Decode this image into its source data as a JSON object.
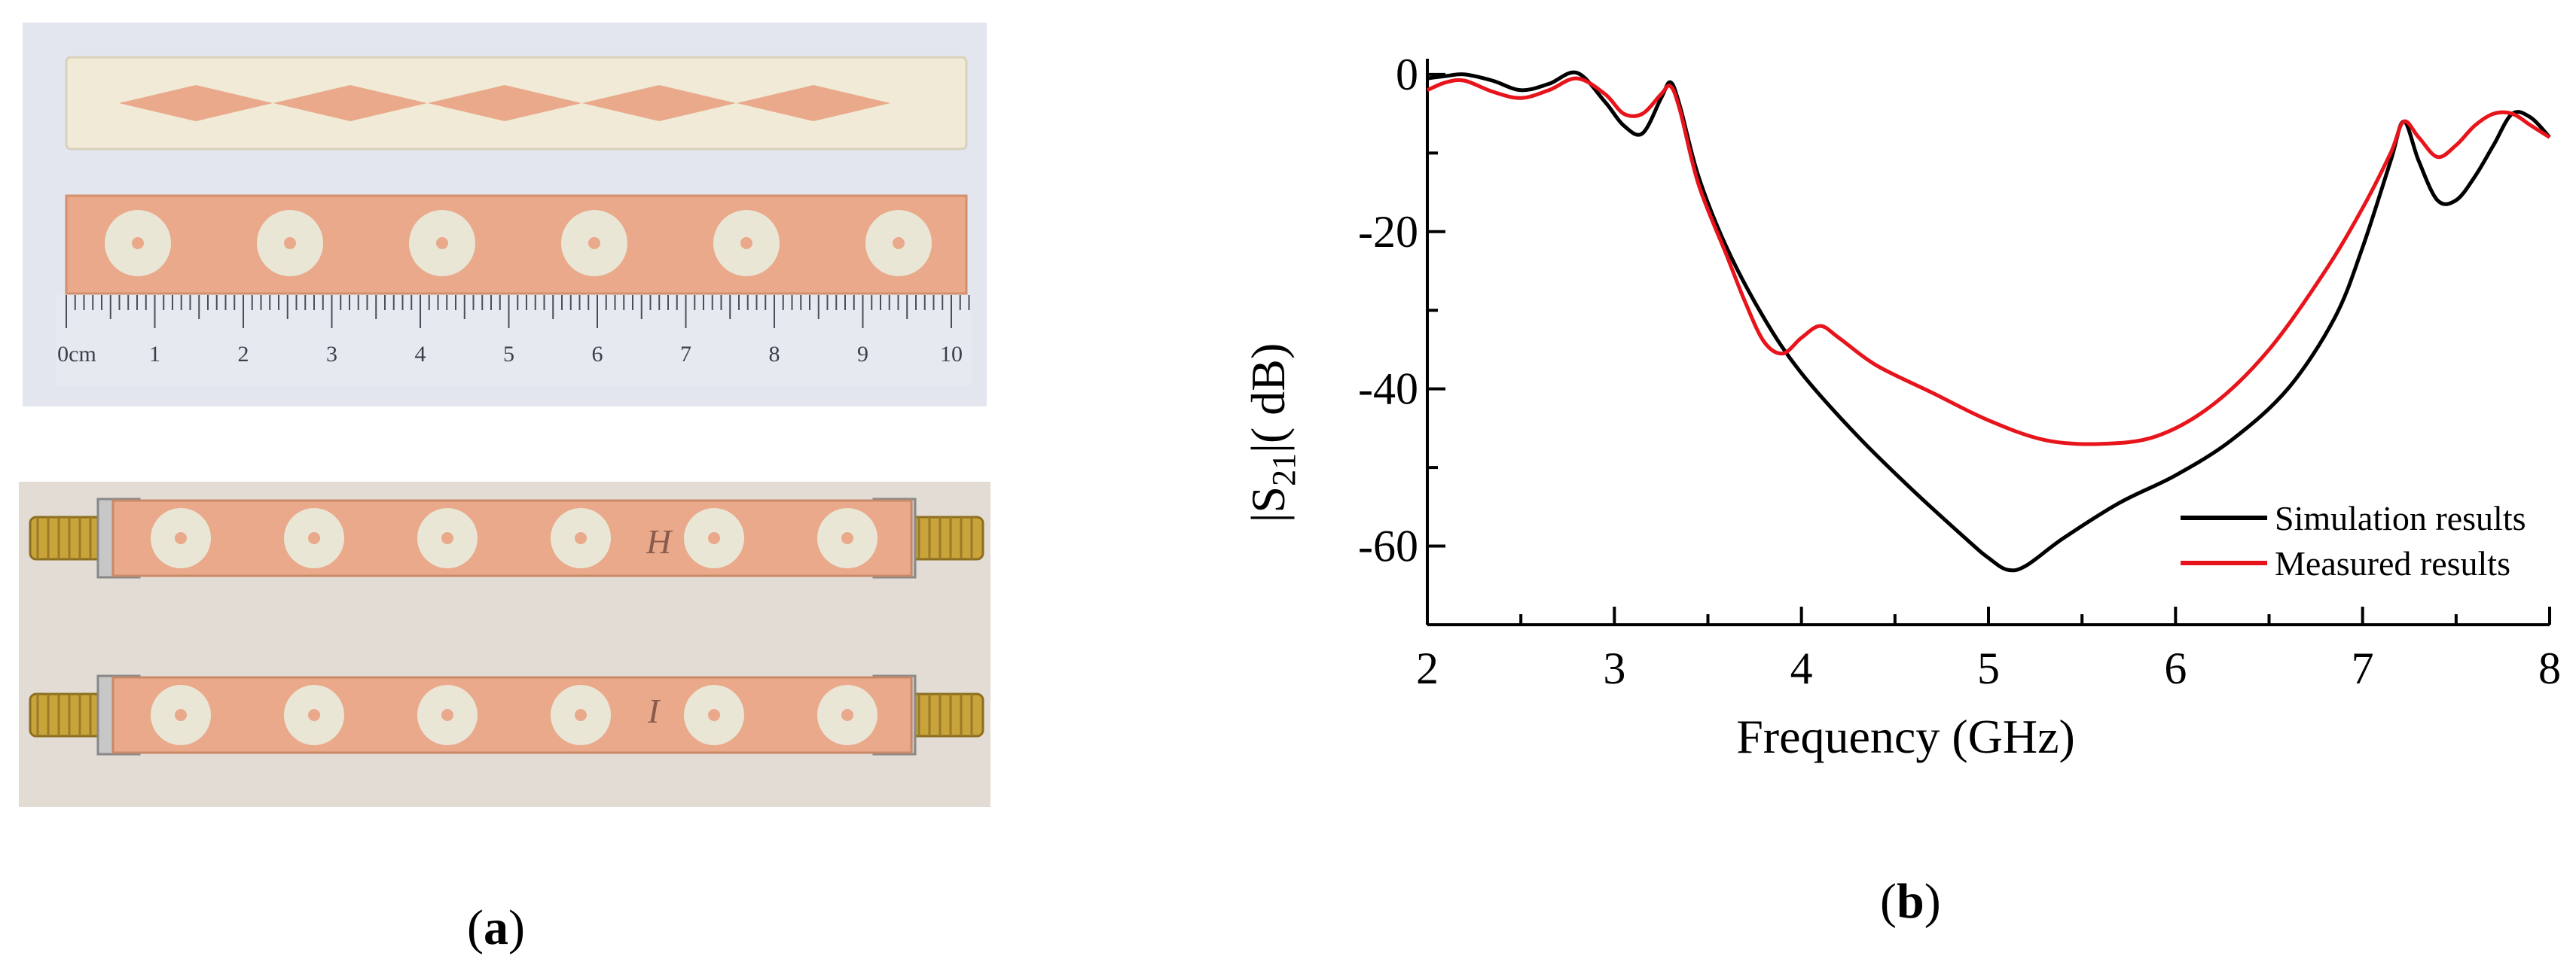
{
  "figure": {
    "panel_a_label": "a",
    "panel_b_label": "b"
  },
  "photo": {
    "description_icon": "filter-photo",
    "ruler_labels": [
      "0cm",
      "1",
      "2",
      "3",
      "4",
      "5",
      "6",
      "7",
      "8",
      "9",
      "10"
    ],
    "handwritten_marks": [
      "H",
      "I"
    ]
  },
  "colors": {
    "simulation": "#000000",
    "measured": "#e8141b",
    "copper": "#e9a98a",
    "board_light": "#f0ead6",
    "pad": "#e9e6d6"
  },
  "chart_data": {
    "type": "line",
    "title": "",
    "xlabel": "Frequency (GHz)",
    "ylabel": "|S21|( dB)",
    "xlim": [
      2,
      8
    ],
    "ylim": [
      -70,
      2
    ],
    "xticks": [
      2,
      3,
      4,
      5,
      6,
      7,
      8
    ],
    "yticks": [
      0,
      -20,
      -40,
      -60
    ],
    "legend_position": "bottom-right",
    "series": [
      {
        "name": "Simulation results",
        "color": "#000000",
        "x": [
          2.0,
          2.1,
          2.2,
          2.35,
          2.5,
          2.65,
          2.8,
          2.95,
          3.05,
          3.15,
          3.25,
          3.3,
          3.35,
          3.45,
          3.6,
          3.8,
          4.0,
          4.3,
          4.6,
          4.9,
          5.0,
          5.1,
          5.2,
          5.4,
          5.7,
          6.0,
          6.3,
          6.6,
          6.85,
          7.0,
          7.15,
          7.22,
          7.3,
          7.4,
          7.5,
          7.6,
          7.7,
          7.8,
          7.9,
          8.0
        ],
        "y": [
          -0.5,
          -0.2,
          0.0,
          -0.8,
          -2.0,
          -1.2,
          0.2,
          -3.5,
          -6.5,
          -7.5,
          -3.0,
          -1.0,
          -4.0,
          -13.0,
          -22.0,
          -31.0,
          -38.0,
          -46.0,
          -53.0,
          -59.5,
          -61.5,
          -63.0,
          -62.5,
          -59.0,
          -54.5,
          -51.0,
          -46.5,
          -40.0,
          -31.0,
          -22.0,
          -11.0,
          -6.0,
          -11.0,
          -16.0,
          -16.0,
          -13.0,
          -9.0,
          -5.0,
          -5.5,
          -8.0
        ]
      },
      {
        "name": "Measured results",
        "color": "#e8141b",
        "x": [
          2.0,
          2.1,
          2.2,
          2.35,
          2.5,
          2.65,
          2.8,
          2.95,
          3.05,
          3.15,
          3.25,
          3.3,
          3.35,
          3.45,
          3.6,
          3.7,
          3.8,
          3.9,
          4.0,
          4.1,
          4.2,
          4.4,
          4.7,
          5.0,
          5.3,
          5.6,
          5.9,
          6.2,
          6.5,
          6.8,
          7.0,
          7.15,
          7.22,
          7.3,
          7.4,
          7.5,
          7.6,
          7.7,
          7.8,
          7.9,
          8.0
        ],
        "y": [
          -2.0,
          -1.0,
          -0.8,
          -2.2,
          -3.0,
          -2.0,
          -0.5,
          -2.5,
          -5.0,
          -5.0,
          -2.5,
          -1.5,
          -4.5,
          -14.0,
          -23.0,
          -29.0,
          -34.0,
          -35.5,
          -33.5,
          -32.0,
          -33.5,
          -37.0,
          -40.5,
          -44.0,
          -46.5,
          -47.0,
          -46.0,
          -42.0,
          -35.0,
          -25.0,
          -17.0,
          -10.0,
          -6.0,
          -8.0,
          -10.5,
          -9.0,
          -6.5,
          -5.0,
          -5.0,
          -6.5,
          -8.0
        ]
      }
    ]
  }
}
